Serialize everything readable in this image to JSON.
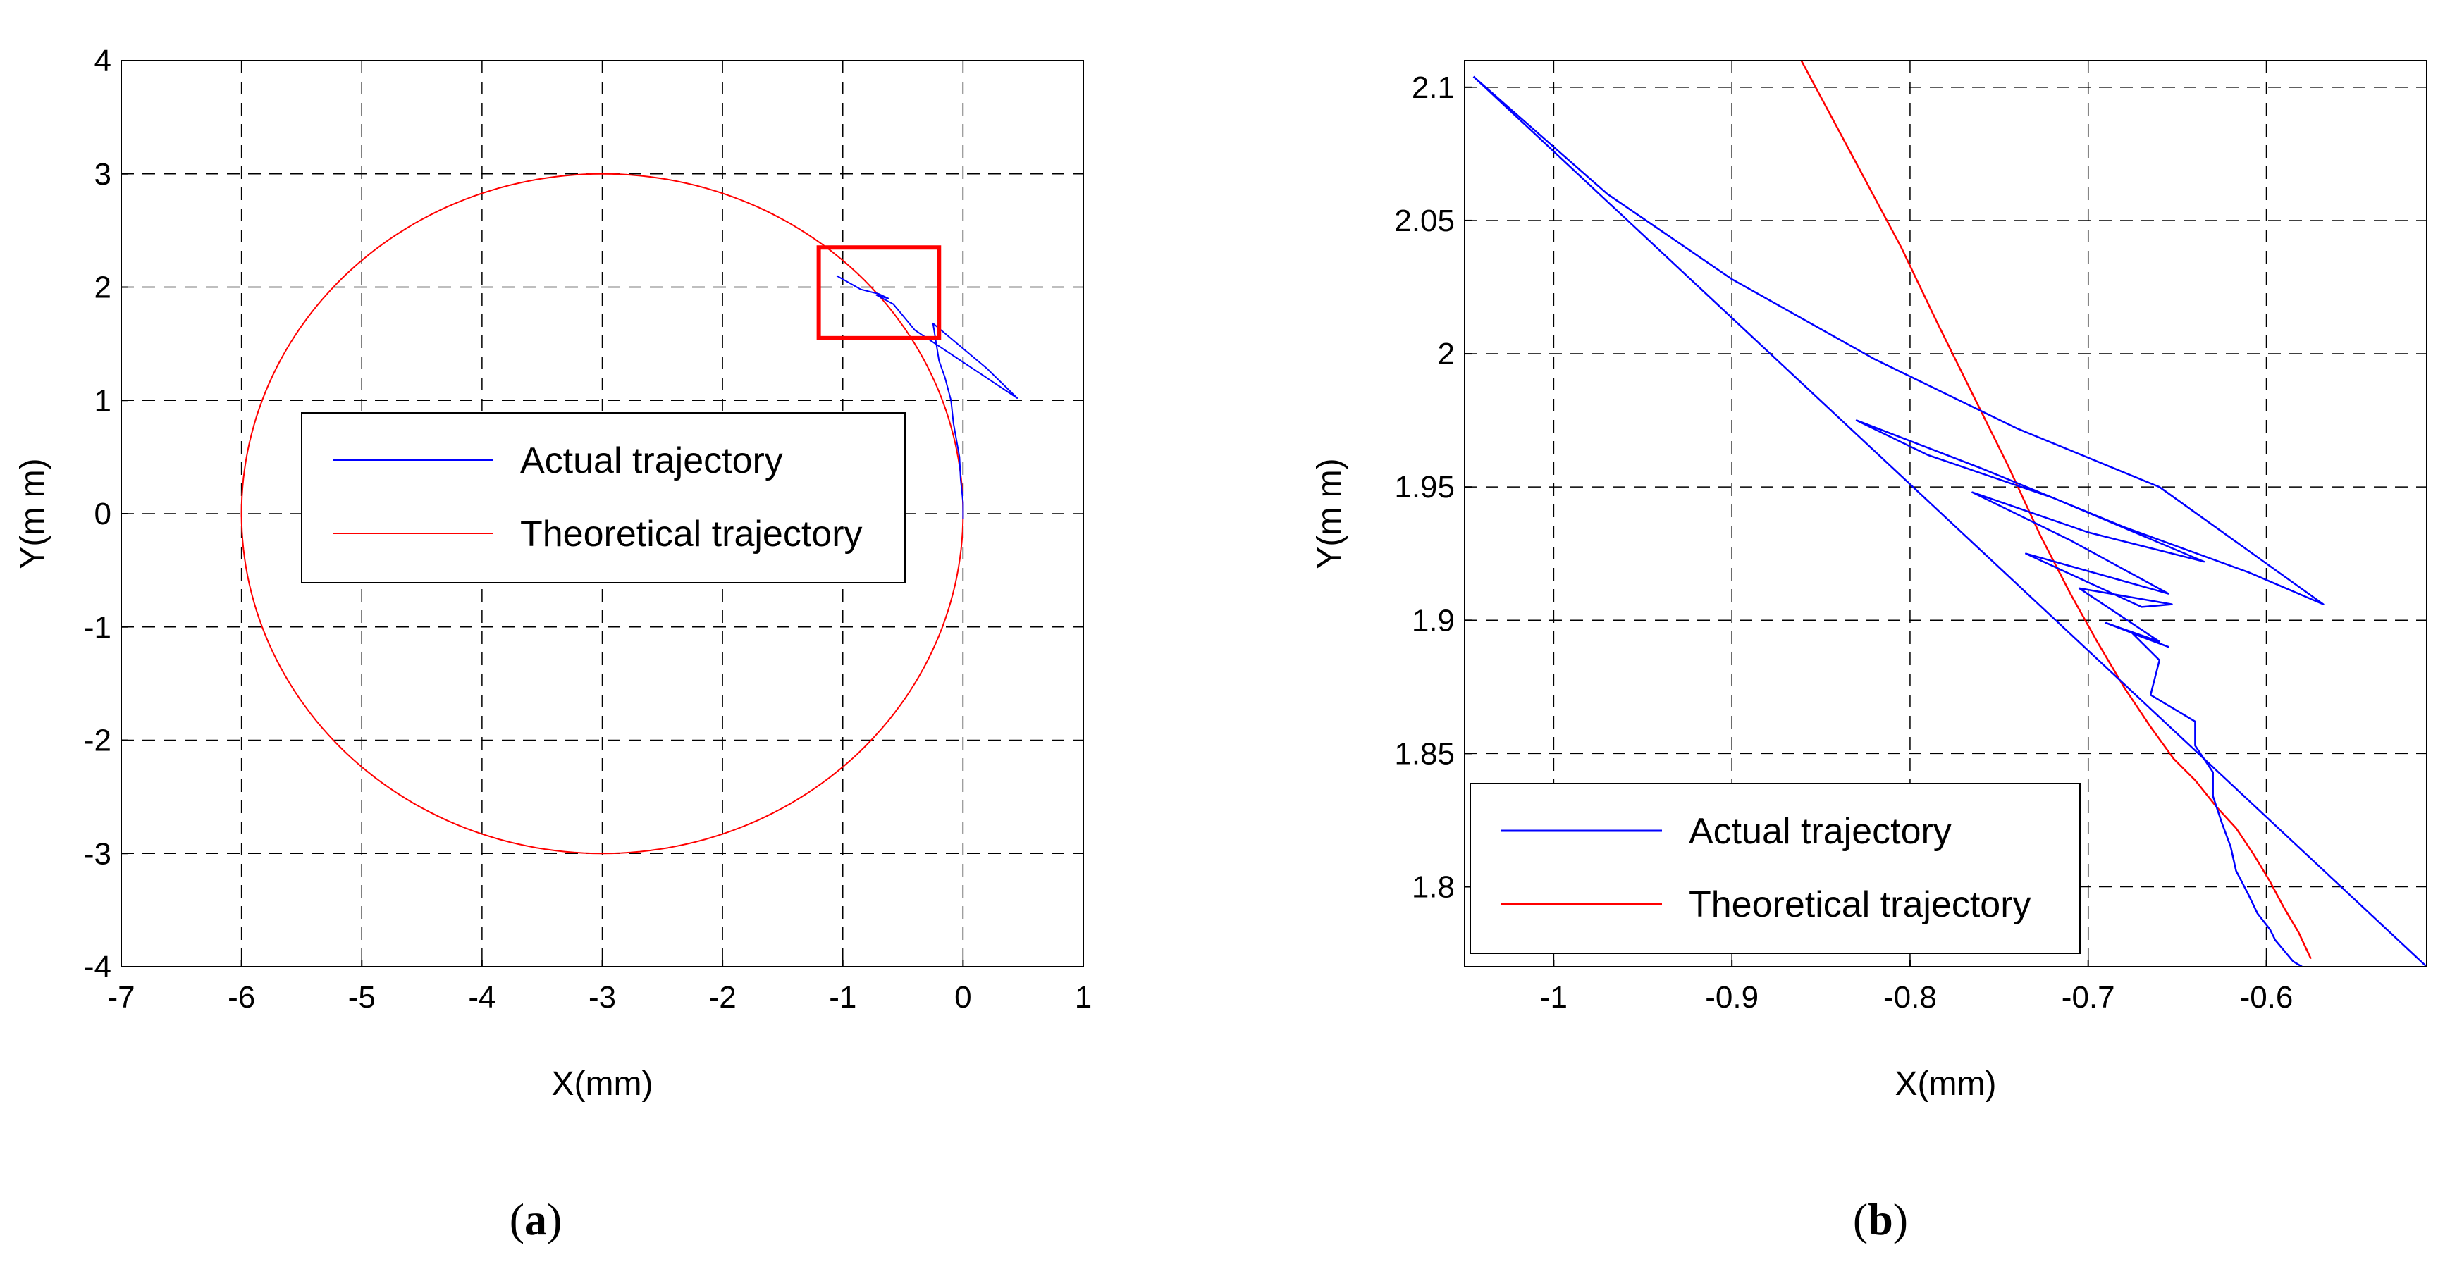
{
  "figure": {
    "captions": [
      "a",
      "b"
    ]
  },
  "chart_data": [
    {
      "id": "a",
      "type": "line",
      "xlabel": "X(mm)",
      "ylabel": "Y(m m)",
      "xlim": [
        -7,
        1
      ],
      "ylim": [
        -4,
        4
      ],
      "xticks": [
        -7,
        -6,
        -5,
        -4,
        -3,
        -2,
        -1,
        0,
        1
      ],
      "yticks": [
        -4,
        -3,
        -2,
        -1,
        0,
        1,
        2,
        3,
        4
      ],
      "xtick_labels": [
        "-7",
        "-6",
        "-5",
        "-4",
        "-3",
        "-2",
        "-1",
        "0",
        "1"
      ],
      "ytick_labels": [
        "-4",
        "-3",
        "-2",
        "-1",
        "0",
        "1",
        "2",
        "3",
        "4"
      ],
      "grid": true,
      "legend": {
        "location": "center-left",
        "entries": [
          "Actual trajectory",
          "Theoretical trajectory"
        ]
      },
      "highlight_box": {
        "x": [
          -1.2,
          -0.2
        ],
        "y": [
          1.55,
          2.35
        ],
        "color": "#ff0000"
      },
      "series": [
        {
          "name": "Theoretical trajectory",
          "color": "#ff0000",
          "circle": {
            "cx": -3.0,
            "cy": 0.0,
            "r": 3.0
          }
        },
        {
          "name": "Actual trajectory",
          "color": "#0000ff",
          "x": [
            -1.05,
            -0.85,
            -0.7,
            -0.62,
            -0.72,
            -0.58,
            -0.4,
            0.45,
            0.2,
            -0.25,
            -0.2,
            -0.15,
            -0.1,
            -0.08,
            -0.03,
            -0.02,
            0.0,
            0.0
          ],
          "y": [
            2.1,
            1.98,
            1.94,
            1.9,
            1.93,
            1.85,
            1.62,
            1.02,
            1.28,
            1.68,
            1.35,
            1.2,
            1.0,
            0.8,
            0.5,
            0.3,
            0.1,
            -0.05
          ]
        }
      ]
    },
    {
      "id": "b",
      "type": "line",
      "xlabel": "X(mm)",
      "ylabel": "Y(m m)",
      "xlim": [
        -1.05,
        -0.51
      ],
      "ylim": [
        1.77,
        2.11
      ],
      "xticks": [
        -1.0,
        -0.9,
        -0.8,
        -0.7,
        -0.6
      ],
      "yticks": [
        1.8,
        1.85,
        1.9,
        1.95,
        2.0,
        2.05,
        2.1
      ],
      "xtick_labels": [
        "-1",
        "-0.9",
        "-0.8",
        "-0.7",
        "-0.6"
      ],
      "ytick_labels": [
        "1.8",
        "1.85",
        "1.9",
        "1.95",
        "2",
        "2.05",
        "2.1"
      ],
      "grid": true,
      "legend": {
        "location": "bottom-left",
        "entries": [
          "Actual trajectory",
          "Theoretical trajectory"
        ]
      },
      "series": [
        {
          "name": "Theoretical trajectory",
          "color": "#ff0000",
          "x": [
            -0.865,
            -0.845,
            -0.825,
            -0.805,
            -0.785,
            -0.765,
            -0.745,
            -0.727,
            -0.71,
            -0.695,
            -0.68,
            -0.665,
            -0.652,
            -0.64,
            -0.628,
            -0.617,
            -0.607,
            -0.598,
            -0.59,
            -0.582,
            -0.575
          ],
          "y": [
            2.115,
            2.09,
            2.065,
            2.04,
            2.012,
            1.985,
            1.958,
            1.932,
            1.91,
            1.892,
            1.875,
            1.86,
            1.848,
            1.84,
            1.83,
            1.822,
            1.812,
            1.802,
            1.792,
            1.783,
            1.773
          ]
        },
        {
          "name": "Actual trajectory",
          "color": "#0000ff",
          "x": [
            -1.045,
            -0.97,
            -0.9,
            -0.82,
            -0.74,
            -0.66,
            -0.568,
            -0.61,
            -0.68,
            -0.76,
            -0.83,
            -0.79,
            -0.72,
            -0.635,
            -0.7,
            -0.765,
            -0.71,
            -0.655,
            -0.735,
            -0.67,
            -0.653,
            -0.705,
            -0.66,
            -0.69,
            -0.655,
            -0.675,
            -0.66,
            -0.665,
            -0.64,
            -0.64,
            -0.63,
            -0.63,
            -0.625,
            -0.62,
            -0.617,
            -0.61,
            -0.605,
            -0.598,
            -0.595,
            -0.59,
            -0.585,
            -0.58
          ],
          "y": [
            2.104,
            2.06,
            2.028,
            1.998,
            1.972,
            1.95,
            1.906,
            1.918,
            1.935,
            1.957,
            1.975,
            1.962,
            1.946,
            1.922,
            1.933,
            1.948,
            1.93,
            1.91,
            1.925,
            1.905,
            1.906,
            1.912,
            1.892,
            1.899,
            1.89,
            1.895,
            1.885,
            1.872,
            1.862,
            1.853,
            1.843,
            1.834,
            1.824,
            1.815,
            1.806,
            1.797,
            1.79,
            1.784,
            1.78,
            1.776,
            1.772,
            1.77
          ]
        },
        {
          "name": "Actual trajectory (long segment)",
          "color": "#0000ff",
          "x": [
            -1.045,
            -0.51
          ],
          "y": [
            2.104,
            1.77
          ]
        }
      ]
    }
  ]
}
